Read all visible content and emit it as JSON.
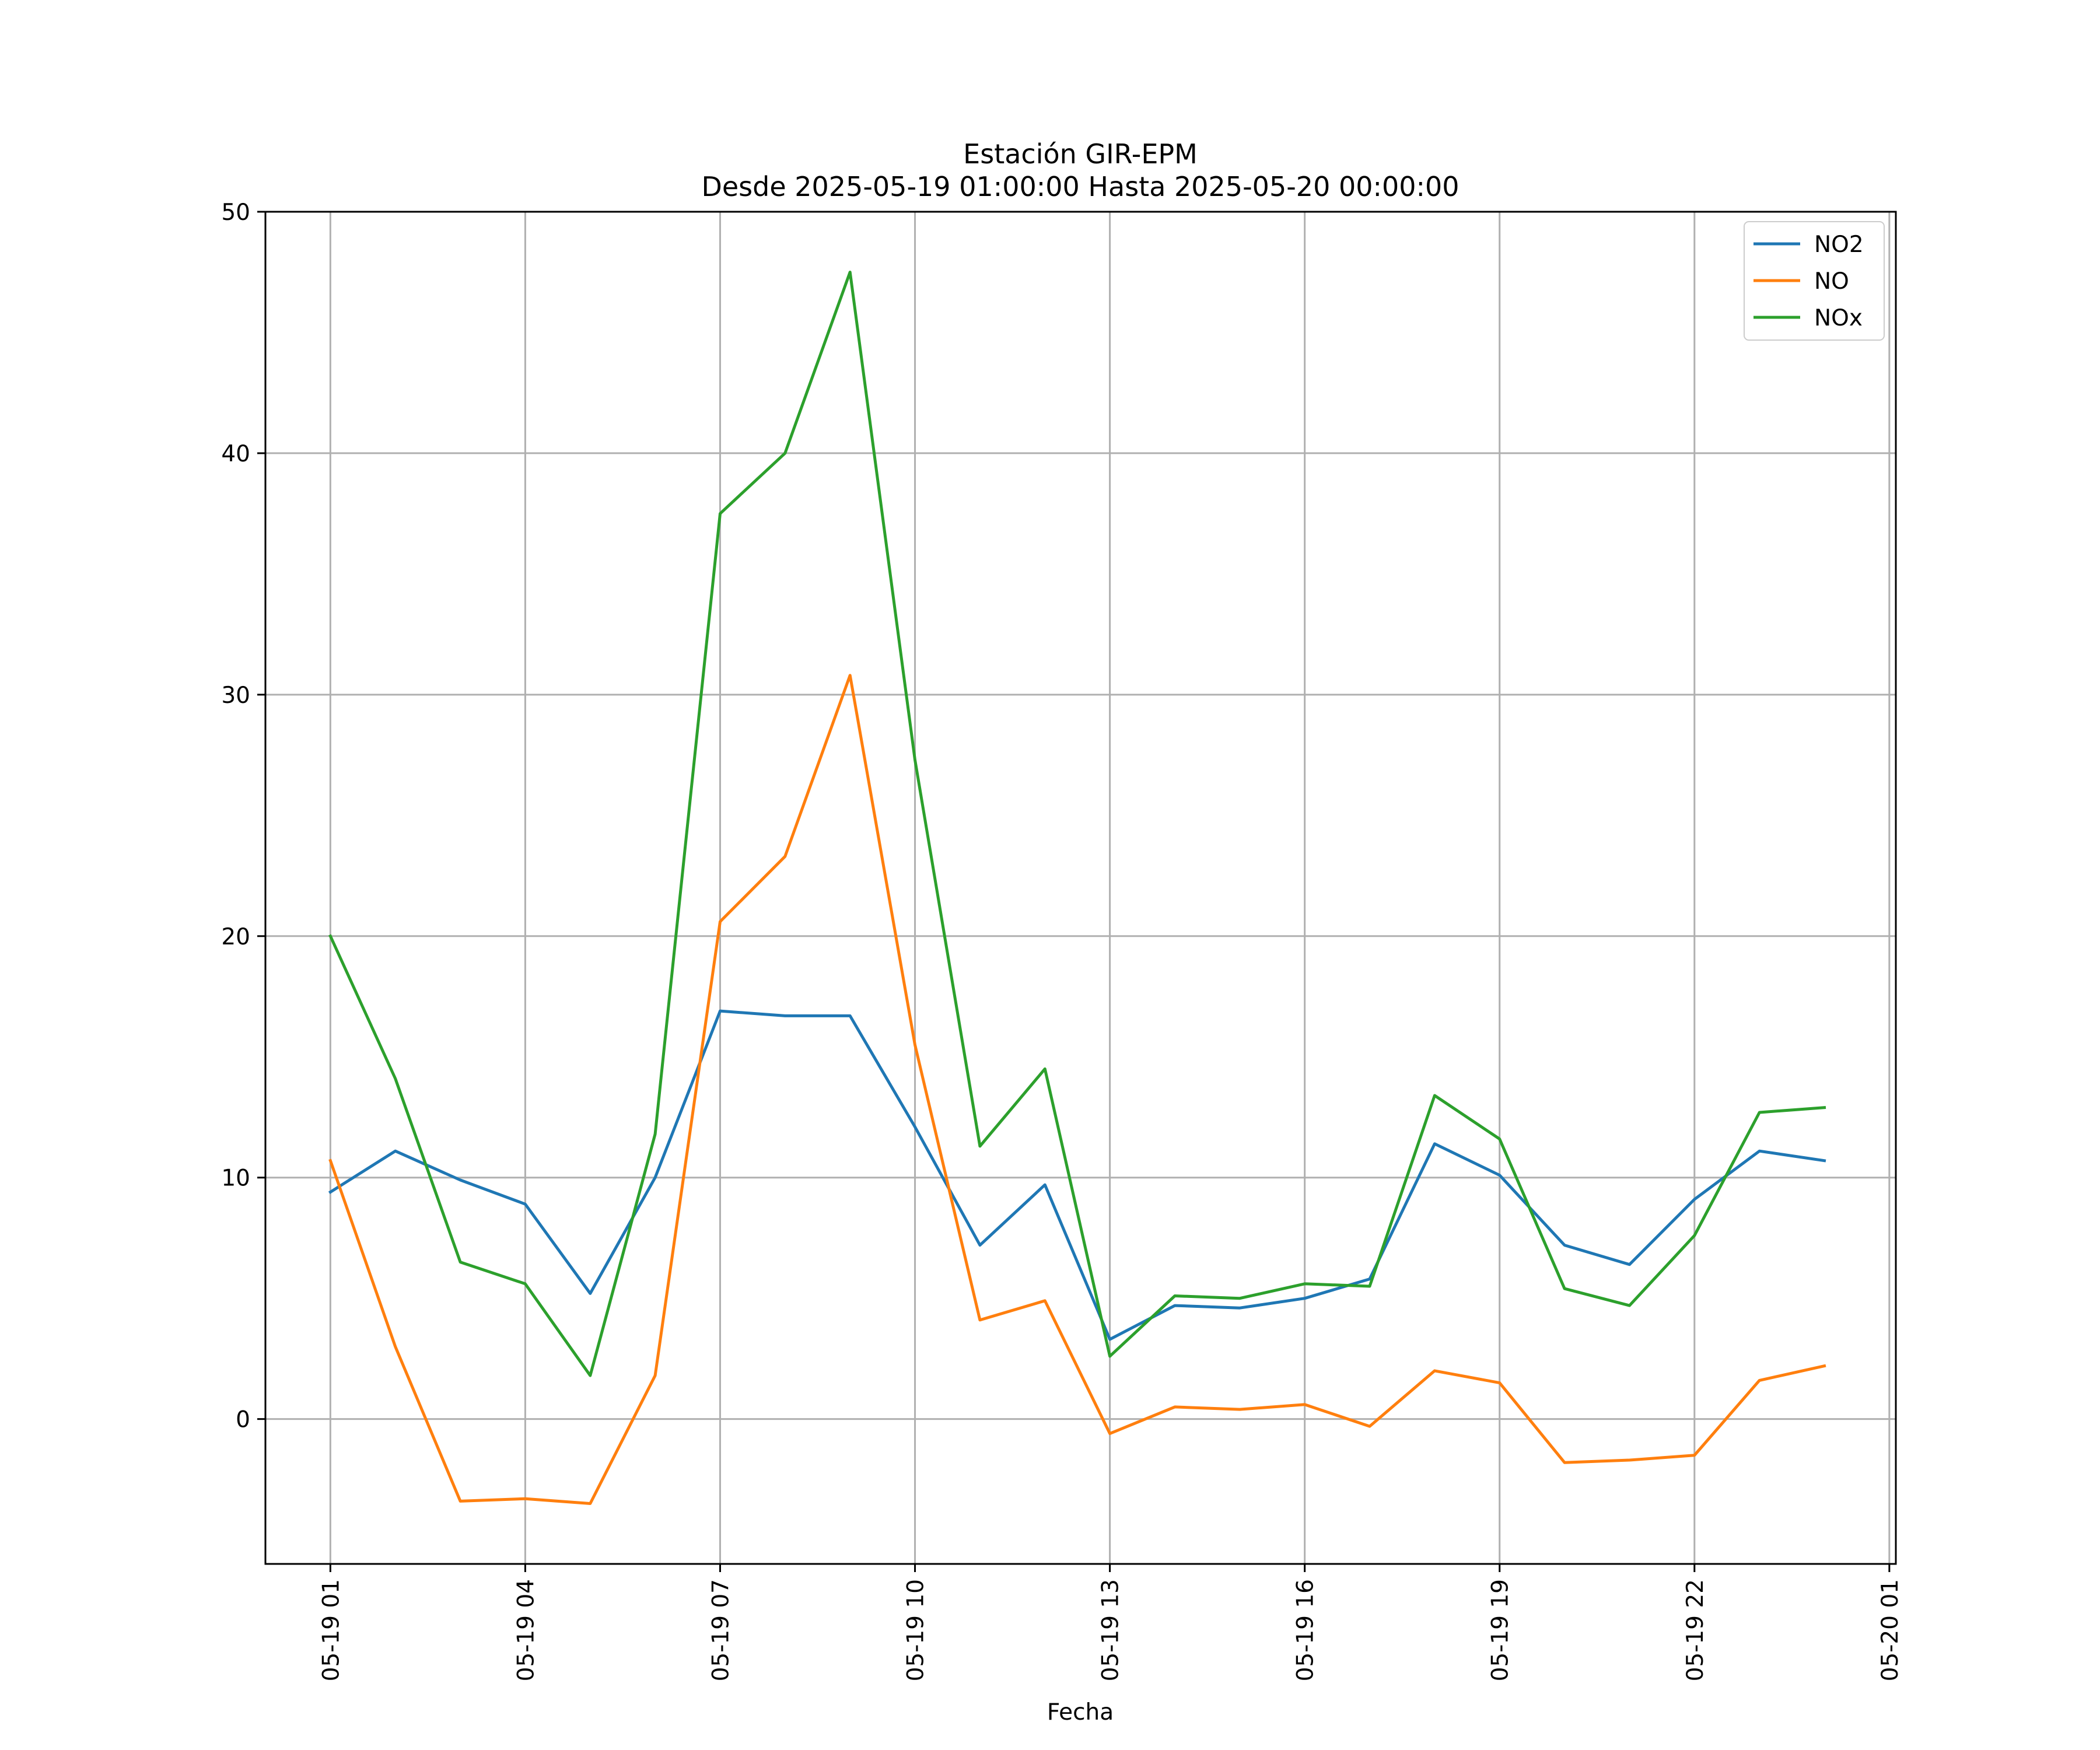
{
  "chart_data": {
    "type": "line",
    "title": "Estación GIR-EPM",
    "subtitle": "Desde 2025-05-19 01:00:00 Hasta 2025-05-20 00:00:00",
    "xlabel": "Fecha",
    "ylabel": "",
    "ylim": [
      -6,
      50
    ],
    "xlim": [
      "2025-05-19 00:00",
      "2025-05-20 01:06"
    ],
    "grid": true,
    "legend_position": "top-right",
    "x_ticks": [
      "05-19 01",
      "05-19 04",
      "05-19 07",
      "05-19 10",
      "05-19 13",
      "05-19 16",
      "05-19 19",
      "05-19 22",
      "05-20 01"
    ],
    "y_ticks": [
      0,
      10,
      20,
      30,
      40,
      50
    ],
    "x": [
      "2025-05-19 01:00",
      "2025-05-19 02:00",
      "2025-05-19 03:00",
      "2025-05-19 04:00",
      "2025-05-19 05:00",
      "2025-05-19 06:00",
      "2025-05-19 07:00",
      "2025-05-19 08:00",
      "2025-05-19 09:00",
      "2025-05-19 10:00",
      "2025-05-19 11:00",
      "2025-05-19 12:00",
      "2025-05-19 13:00",
      "2025-05-19 14:00",
      "2025-05-19 15:00",
      "2025-05-19 16:00",
      "2025-05-19 17:00",
      "2025-05-19 18:00",
      "2025-05-19 19:00",
      "2025-05-19 20:00",
      "2025-05-19 21:00",
      "2025-05-19 22:00",
      "2025-05-19 23:00",
      "2025-05-20 00:00"
    ],
    "series": [
      {
        "name": "NO2",
        "color": "#1f77b4",
        "values": [
          9.4,
          11.1,
          9.9,
          8.9,
          5.2,
          10.0,
          16.9,
          16.7,
          16.7,
          12.1,
          7.2,
          9.7,
          3.3,
          4.7,
          4.6,
          5.0,
          5.8,
          11.4,
          10.1,
          7.2,
          6.4,
          9.1,
          11.1,
          10.7
        ]
      },
      {
        "name": "NO",
        "color": "#ff7f0e",
        "values": [
          10.7,
          3.0,
          -3.4,
          -3.3,
          -3.5,
          1.8,
          20.6,
          23.3,
          30.8,
          15.5,
          4.1,
          4.9,
          -0.6,
          0.5,
          0.4,
          0.6,
          -0.3,
          2.0,
          1.5,
          -1.8,
          -1.7,
          -1.5,
          1.6,
          2.2
        ]
      },
      {
        "name": "NOx",
        "color": "#2ca02c",
        "values": [
          20.0,
          14.1,
          6.5,
          5.6,
          1.8,
          11.8,
          37.5,
          40.0,
          47.5,
          27.3,
          11.3,
          14.5,
          2.6,
          5.1,
          5.0,
          5.6,
          5.5,
          13.4,
          11.6,
          5.4,
          4.7,
          7.6,
          12.7,
          12.9
        ]
      }
    ]
  }
}
